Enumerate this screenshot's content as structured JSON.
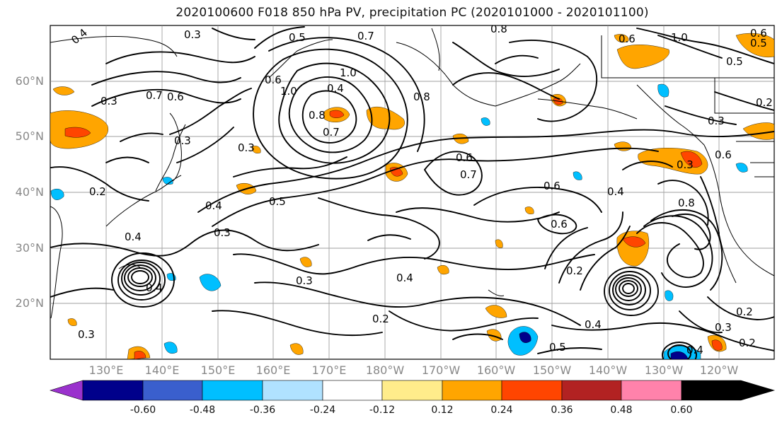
{
  "title": "2020100600 F018 850 hPa PV, precipitation PC (2020101000 - 2020101100)",
  "axes": {
    "lat_ticks": [
      "60°N",
      "50°N",
      "40°N",
      "30°N",
      "20°N"
    ],
    "lon_ticks": [
      "130°E",
      "140°E",
      "150°E",
      "160°E",
      "170°E",
      "180°W",
      "170°W",
      "160°W",
      "150°W",
      "140°W",
      "130°W",
      "120°W"
    ],
    "tick_color": "#888888"
  },
  "colorbar": {
    "tick_labels": [
      "-0.60",
      "-0.48",
      "-0.36",
      "-0.24",
      "-0.12",
      "0.12",
      "0.24",
      "0.36",
      "0.48",
      "0.60"
    ],
    "colors": [
      "#9a32cd",
      "#00008b",
      "#3a5fcd",
      "#00bfff",
      "#b0e2ff",
      "#ffffff",
      "#ffec8b",
      "#ffa500",
      "#ff4500",
      "#b22222",
      "#ff82ab"
    ]
  },
  "contour_labels": [
    "0.4",
    "0.5",
    "0.7",
    "0.8",
    "1.0",
    "0.6",
    "0.3",
    "0.7",
    "0.6",
    "1.0",
    "0.8",
    "0.4",
    "0.8",
    "0.7",
    "0.5",
    "0.3",
    "0.3",
    "0.2",
    "0.4",
    "0.6",
    "0.7",
    "0.6",
    "0.6",
    "0.4",
    "0.8",
    "0.3",
    "0.6",
    "0.5",
    "0.3",
    "0.4",
    "0.4",
    "0.2",
    "0.2",
    "0.3",
    "0.4",
    "0.5",
    "0.4",
    "0.2",
    "0.3",
    "0.2",
    "0.3",
    "0.3",
    "0.2",
    "1.0",
    "0.5",
    "0.6",
    "0.6",
    "0.3",
    "0.4"
  ]
}
